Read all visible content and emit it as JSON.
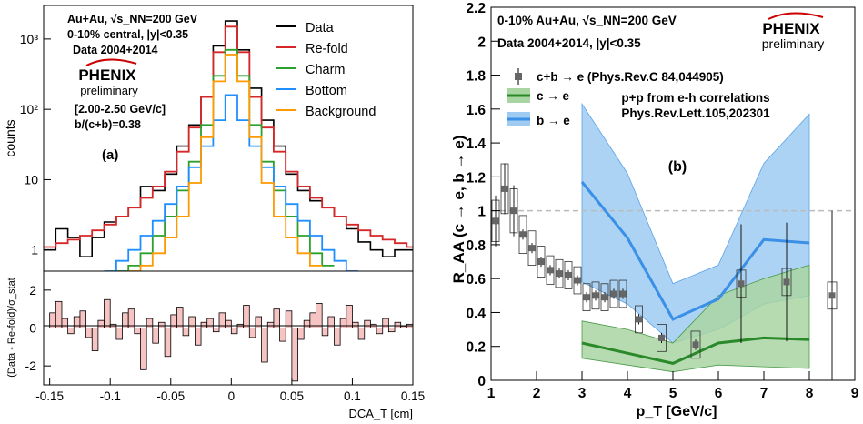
{
  "colors": {
    "data": "#000000",
    "refold": "#d62728",
    "charm": "#2ca02c",
    "bottom": "#1f8fff",
    "background": "#ff9900",
    "pull_fill": "#f7c4c4",
    "band_blue": "#9fcbf2",
    "band_green": "#a9d5a2",
    "grey_marker": "#666666",
    "dashed": "#bbbbbb"
  },
  "chart_data": [
    {
      "type": "line",
      "panel": "(a) upper",
      "label": "(a)",
      "info_lines": [
        "Au+Au, √s_NN=200 GeV",
        "0-10% central, |y|<0.35",
        "Data 2004+2014",
        "[2.00-2.50 GeV/c]",
        "b/(c+b)=0.38"
      ],
      "logo": {
        "name": "PHENIX",
        "sub": "preliminary"
      },
      "ylabel": "counts",
      "yscale": "log",
      "ylim": [
        0.5,
        3000
      ],
      "xlim": [
        -0.155,
        0.15
      ],
      "yticks": [
        "1",
        "10",
        "10²",
        "10³"
      ],
      "legend": [
        "Data",
        "Re-fold",
        "Charm",
        "Bottom",
        "Background"
      ],
      "series": [
        {
          "name": "Data",
          "color": "#000000",
          "x": [
            -0.15,
            -0.14,
            -0.13,
            -0.12,
            -0.11,
            -0.1,
            -0.09,
            -0.08,
            -0.07,
            -0.06,
            -0.05,
            -0.04,
            -0.03,
            -0.02,
            -0.01,
            0,
            0.01,
            0.02,
            0.03,
            0.04,
            0.05,
            0.06,
            0.07,
            0.08,
            0.09,
            0.1,
            0.11,
            0.12,
            0.13,
            0.14,
            0.15
          ],
          "y": [
            1,
            2,
            1.5,
            0.8,
            1.5,
            2.5,
            3,
            4,
            8,
            7,
            12,
            30,
            60,
            150,
            800,
            1800,
            700,
            200,
            70,
            30,
            12,
            7,
            5,
            4,
            3,
            2,
            1.3,
            1,
            0.8,
            1,
            1
          ]
        },
        {
          "name": "Re-fold",
          "color": "#d62728",
          "x": [
            -0.15,
            -0.14,
            -0.13,
            -0.12,
            -0.11,
            -0.1,
            -0.09,
            -0.08,
            -0.07,
            -0.06,
            -0.05,
            -0.04,
            -0.03,
            -0.02,
            -0.01,
            0,
            0.01,
            0.02,
            0.03,
            0.04,
            0.05,
            0.06,
            0.07,
            0.08,
            0.09,
            0.1,
            0.11,
            0.12,
            0.13,
            0.14,
            0.15
          ],
          "y": [
            1.1,
            1.25,
            1.4,
            1.6,
            1.9,
            2.3,
            3,
            4,
            5.5,
            8,
            13,
            25,
            55,
            150,
            650,
            1500,
            650,
            150,
            55,
            25,
            13,
            8,
            5.5,
            4,
            3,
            2.3,
            1.9,
            1.6,
            1.4,
            1.25,
            1.1
          ]
        },
        {
          "name": "Charm",
          "color": "#2ca02c",
          "x": [
            -0.09,
            -0.08,
            -0.07,
            -0.06,
            -0.05,
            -0.04,
            -0.03,
            -0.02,
            -0.01,
            0,
            0.01,
            0.02,
            0.03,
            0.04,
            0.05,
            0.06,
            0.07,
            0.08
          ],
          "y": [
            0.5,
            0.6,
            0.9,
            1.6,
            3,
            7,
            18,
            60,
            300,
            700,
            300,
            60,
            18,
            7,
            3,
            1.6,
            0.9,
            0.6
          ]
        },
        {
          "name": "Bottom",
          "color": "#1f8fff",
          "x": [
            -0.1,
            -0.09,
            -0.08,
            -0.07,
            -0.06,
            -0.05,
            -0.04,
            -0.03,
            -0.02,
            -0.01,
            0,
            0.01,
            0.02,
            0.03,
            0.04,
            0.05,
            0.06,
            0.07,
            0.08,
            0.09,
            0.1
          ],
          "y": [
            0.5,
            0.7,
            1,
            1.6,
            2.6,
            4.5,
            8,
            15,
            30,
            70,
            160,
            70,
            30,
            15,
            8,
            4.5,
            2.6,
            1.6,
            1,
            0.7,
            0.5
          ]
        },
        {
          "name": "Background",
          "color": "#ff9900",
          "x": [
            -0.08,
            -0.07,
            -0.06,
            -0.05,
            -0.04,
            -0.03,
            -0.02,
            -0.01,
            0,
            0.01,
            0.02,
            0.03,
            0.04,
            0.05,
            0.06,
            0.07
          ],
          "y": [
            0.5,
            0.6,
            0.9,
            1.5,
            3,
            9,
            40,
            250,
            600,
            250,
            40,
            9,
            3,
            1.5,
            0.9,
            0.6
          ]
        }
      ]
    },
    {
      "type": "bar",
      "panel": "(a) lower",
      "ylabel": "(Data - Re-fold)/σ_stat",
      "xlabel": "DCA_T [cm]",
      "ylim": [
        -3,
        3
      ],
      "xlim": [
        -0.155,
        0.15
      ],
      "yticks": [
        "2",
        "0",
        "-2"
      ],
      "xticks": [
        "-0.15",
        "-0.1",
        "-0.05",
        "0",
        "0.05",
        "0.1",
        "0.15"
      ],
      "x": [
        -0.15,
        -0.145,
        -0.14,
        -0.135,
        -0.13,
        -0.125,
        -0.12,
        -0.115,
        -0.11,
        -0.105,
        -0.1,
        -0.095,
        -0.09,
        -0.085,
        -0.08,
        -0.075,
        -0.07,
        -0.065,
        -0.06,
        -0.055,
        -0.05,
        -0.045,
        -0.04,
        -0.035,
        -0.03,
        -0.025,
        -0.02,
        -0.015,
        -0.01,
        -0.005,
        0,
        0.005,
        0.01,
        0.015,
        0.02,
        0.025,
        0.03,
        0.035,
        0.04,
        0.045,
        0.05,
        0.055,
        0.06,
        0.065,
        0.07,
        0.075,
        0.08,
        0.085,
        0.09,
        0.095,
        0.1,
        0.105,
        0.11,
        0.115,
        0.12,
        0.125,
        0.13,
        0.135,
        0.14,
        0.145
      ],
      "values": [
        0.8,
        1.4,
        0.5,
        -0.3,
        0.6,
        0.9,
        -0.5,
        -1.2,
        0.4,
        1.5,
        0.2,
        -0.6,
        0.8,
        1.0,
        -0.3,
        -2.2,
        0.5,
        -0.8,
        0.3,
        -1.5,
        0.7,
        1.1,
        -0.4,
        0.6,
        -0.9,
        0.3,
        0.5,
        -0.2,
        0.8,
        0.4,
        -0.3,
        0.2,
        1.2,
        -0.5,
        0.6,
        -1.8,
        0.3,
        1.0,
        -0.7,
        0.9,
        -2.8,
        -0.6,
        0.4,
        0.8,
        1.3,
        -0.4,
        0.6,
        -0.9,
        0.5,
        1.2,
        0.3,
        -0.6,
        0.4,
        0.2,
        -0.3,
        0.5,
        -0.2,
        0.3,
        0.1,
        0.2
      ]
    },
    {
      "type": "scatter",
      "panel": "(b)",
      "label": "(b)",
      "info_lines": [
        "0-10% Au+Au, √s_NN=200 GeV",
        "Data 2004+2014, |y|<0.35"
      ],
      "logo": {
        "name": "PHENIX",
        "sub": "preliminary"
      },
      "xlabel": "p_T [GeV/c]",
      "ylabel": "R_AA (c → e, b → e)",
      "xlim": [
        1,
        9
      ],
      "ylim": [
        0,
        2.2
      ],
      "xticks": [
        "1",
        "2",
        "3",
        "4",
        "5",
        "6",
        "7",
        "8",
        "9"
      ],
      "yticks": [
        "0",
        "0.2",
        "0.4",
        "0.6",
        "0.8",
        "1",
        "1.2",
        "1.4",
        "1.6",
        "1.8",
        "2",
        "2.2"
      ],
      "reference_line": 1,
      "legend": [
        "c+b → e (Phys.Rev.C 84,044905)",
        "c → e",
        "b → e"
      ],
      "annotation": [
        "p+p from e-h correlations",
        "Phys.Rev.Lett.105,202301"
      ],
      "series": [
        {
          "name": "c+b → e (Phys.Rev.C 84,044905)",
          "x": [
            1.1,
            1.3,
            1.5,
            1.7,
            1.9,
            2.1,
            2.3,
            2.5,
            2.7,
            2.9,
            3.1,
            3.3,
            3.5,
            3.7,
            3.9,
            4.25,
            4.75,
            5.5,
            6.5,
            7.5,
            8.5
          ],
          "y": [
            0.94,
            1.13,
            1.0,
            0.86,
            0.78,
            0.7,
            0.65,
            0.63,
            0.62,
            0.59,
            0.49,
            0.5,
            0.49,
            0.51,
            0.51,
            0.36,
            0.25,
            0.21,
            0.57,
            0.58,
            0.5
          ]
        },
        {
          "name": "c → e",
          "x": [
            3,
            4,
            5,
            6,
            7,
            8
          ],
          "y": [
            0.22,
            0.16,
            0.1,
            0.22,
            0.25,
            0.24
          ],
          "band_low": [
            0.13,
            0.09,
            0.05,
            0.09,
            0.08,
            0.07
          ],
          "band_high": [
            0.35,
            0.3,
            0.22,
            0.5,
            0.6,
            0.68
          ]
        },
        {
          "name": "b → e",
          "x": [
            3,
            4,
            5,
            6,
            7,
            8
          ],
          "y": [
            1.17,
            0.84,
            0.36,
            0.48,
            0.83,
            0.81
          ],
          "band_low": [
            0.58,
            0.45,
            0.22,
            0.3,
            0.45,
            0.5
          ],
          "band_high": [
            1.63,
            1.22,
            0.57,
            0.68,
            1.28,
            1.57
          ]
        }
      ]
    }
  ]
}
